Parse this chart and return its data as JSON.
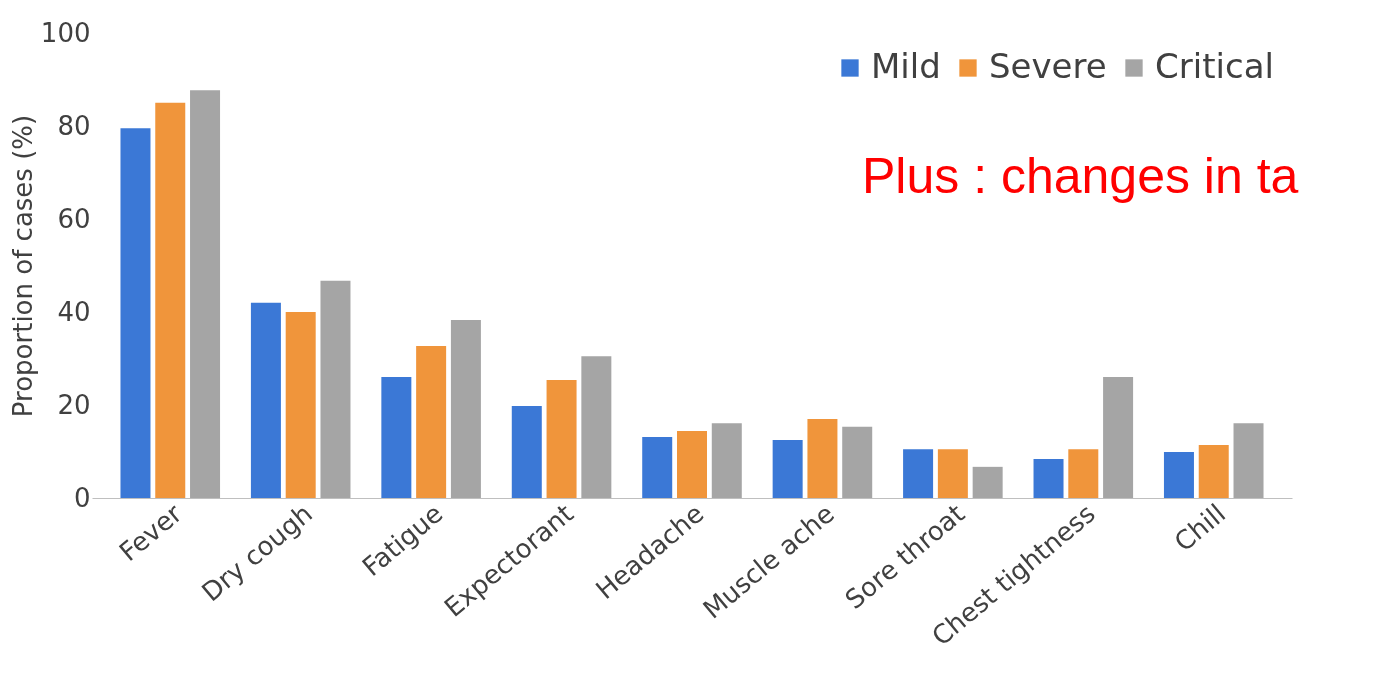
{
  "chart_data": {
    "type": "bar",
    "ylabel": "Proportion of cases (%)",
    "categories": [
      "Fever",
      "Dry cough",
      "Fatigue",
      "Expectorant",
      "Headache",
      "Muscle ache",
      "Sore throat",
      "Chest tightness",
      "Chill"
    ],
    "series": [
      {
        "name": "Mild",
        "color": "#3b78d6",
        "values": [
          79.5,
          42,
          26,
          19.8,
          13.1,
          12.5,
          10.5,
          8.4,
          9.9
        ]
      },
      {
        "name": "Severe",
        "color": "#f0953b",
        "values": [
          85,
          40,
          32.7,
          25.4,
          14.4,
          17,
          10.5,
          10.5,
          11.4
        ]
      },
      {
        "name": "Critical",
        "color": "#a5a5a5",
        "values": [
          87.7,
          46.7,
          38.3,
          30.5,
          16.1,
          15.3,
          6.7,
          26,
          16.1
        ]
      }
    ],
    "ylim": [
      0,
      100
    ],
    "yticks": [
      0,
      20,
      40,
      60,
      80,
      100
    ],
    "grid": false,
    "legend": "top right",
    "annotations": [
      "Plus : changes in ta"
    ]
  }
}
